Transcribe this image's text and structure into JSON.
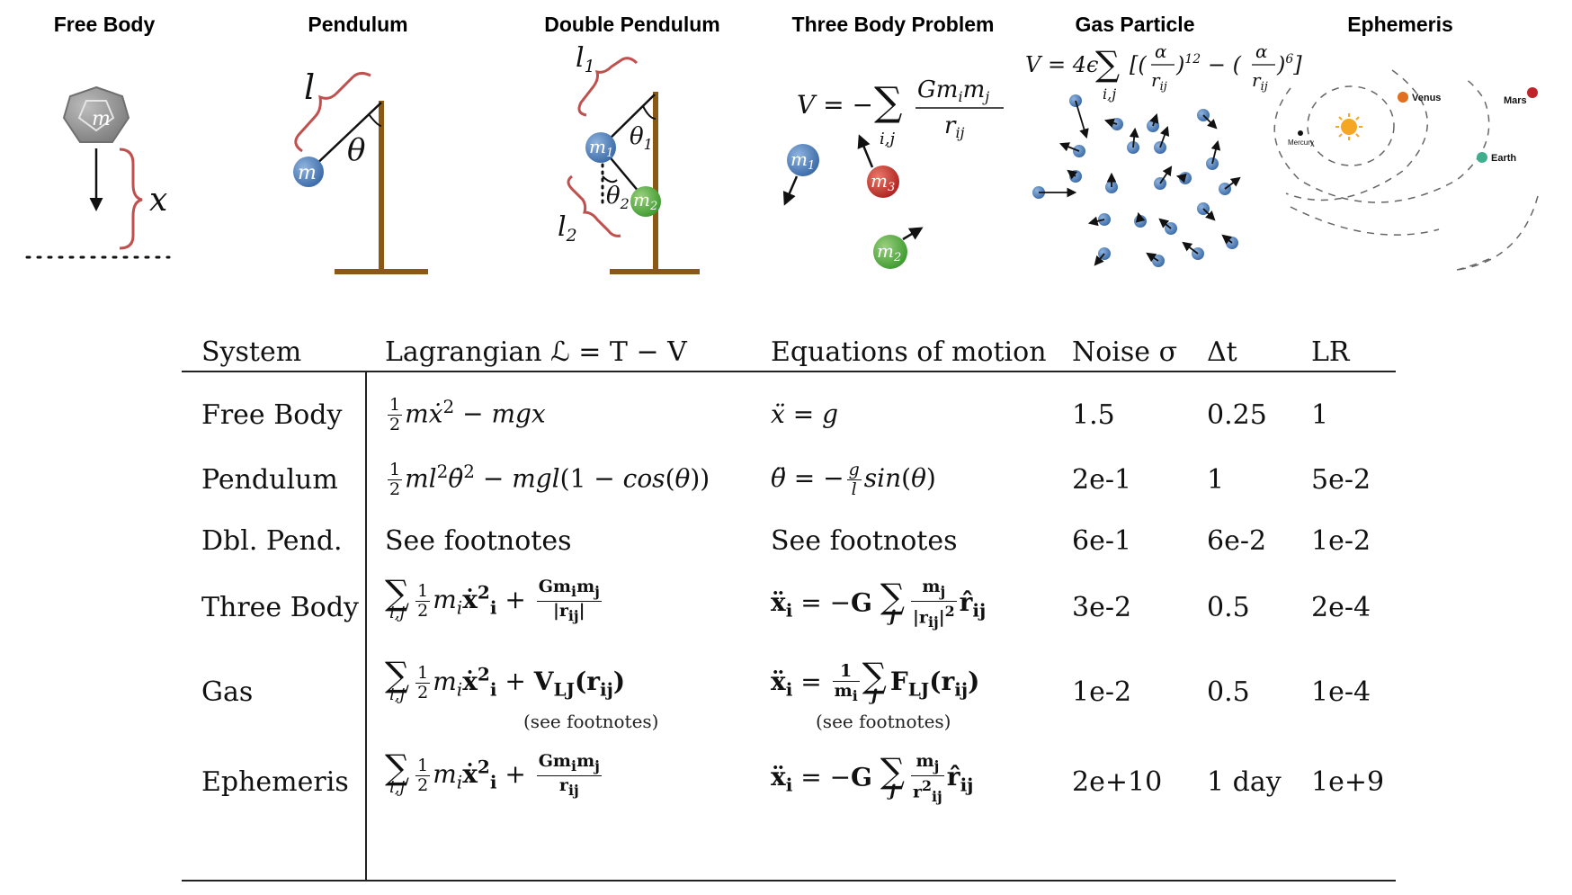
{
  "panels": [
    {
      "id": "free-body",
      "title": "Free Body"
    },
    {
      "id": "pendulum",
      "title": "Pendulum"
    },
    {
      "id": "double-pendulum",
      "title": "Double Pendulum"
    },
    {
      "id": "three-body",
      "title": "Three Body Problem"
    },
    {
      "id": "gas-particle",
      "title": "Gas Particle"
    },
    {
      "id": "ephemeris",
      "title": "Ephemeris"
    }
  ],
  "labels": {
    "m": "m",
    "x": "x",
    "l": "l",
    "theta": "θ",
    "l1": "l",
    "l1_sub": "1",
    "l2": "l",
    "l2_sub": "2",
    "theta1": "θ",
    "theta1_sub": "1",
    "theta2": "θ",
    "theta2_sub": "2",
    "m1": "m",
    "m1_sub": "1",
    "m2": "m",
    "m2_sub": "2",
    "m3": "m",
    "m3_sub": "3",
    "mercury": "Mercury",
    "venus": "Venus",
    "earth": "Earth",
    "mars": "Mars"
  },
  "formulas": {
    "three_body_V": "V = −Σ",
    "three_body_num": "Gm",
    "three_body_den": "r",
    "gas_V": "V = 4ϵ Σ[(α/r",
    "gas_V_tail": ")"
  },
  "colors": {
    "sun": "#f5a623",
    "venus": "#e07020",
    "mars": "#c0242a",
    "earth": "#3fae8c",
    "ball_blue": "#4a7fbf",
    "ball_red": "#c8302a",
    "ball_green": "#4caa3c",
    "brace": "#c0504d",
    "pendulum_post": "#8a5a14",
    "free_body": "#8c8c8c"
  },
  "table": {
    "headers": [
      "System",
      "Lagrangian ℒ = T − V",
      "Equations of motion",
      "Noise σ",
      "Δt",
      "LR"
    ],
    "rows": [
      {
        "system": "Free Body",
        "lagrangian": "½mẋ² − mgx",
        "eom": "ẍ = g",
        "noise": "1.5",
        "dt": "0.25",
        "lr": "1"
      },
      {
        "system": "Pendulum",
        "lagrangian": "½ml²θ̇² − mgl(1 − cos(θ))",
        "eom": "θ̈ = −(g/l)sin(θ)",
        "noise": "2e-1",
        "dt": "1",
        "lr": "5e-2"
      },
      {
        "system": "Dbl. Pend.",
        "lagrangian": "See footnotes",
        "eom": "See footnotes",
        "noise": "6e-1",
        "dt": "6e-2",
        "lr": "1e-2"
      },
      {
        "system": "Three Body",
        "lagrangian": "Σ ½mᵢẋᵢ² + Gmᵢmⱼ/|rᵢⱼ|",
        "eom": "ẍᵢ = −G Σ mⱼ/|rᵢⱼ|² r̂ᵢⱼ",
        "noise": "3e-2",
        "dt": "0.5",
        "lr": "2e-4"
      },
      {
        "system": "Gas",
        "lagrangian": "Σ ½mᵢẋᵢ² + V_LJ(rᵢⱼ)",
        "eom": "ẍᵢ = (1/mᵢ) Σ F_LJ(rᵢⱼ)",
        "noise": "1e-2",
        "dt": "0.5",
        "lr": "1e-4"
      },
      {
        "system": "Ephemeris",
        "lagrangian": "Σ ½mᵢẋᵢ² + Gmᵢmⱼ/rᵢⱼ",
        "eom": "ẍᵢ = −G Σ mⱼ/rᵢⱼ² r̂ᵢⱼ",
        "noise": "2e+10",
        "dt": "1 day",
        "lr": "1e+9"
      }
    ],
    "footnote_label": "(see footnotes)"
  }
}
